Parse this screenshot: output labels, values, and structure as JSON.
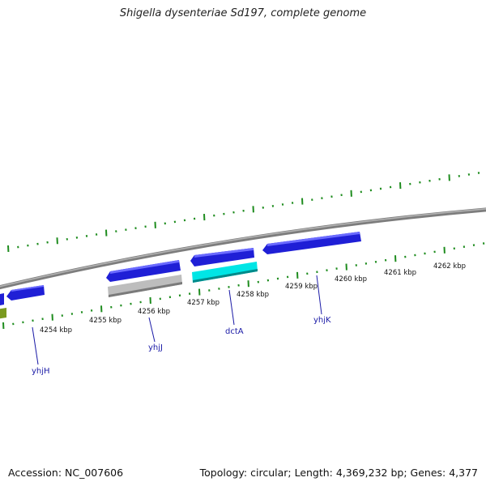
{
  "title": "Shigella dysenteriae Sd197, complete genome",
  "footer": {
    "accession": "Accession: NC_007606",
    "summary": "Topology: circular; Length: 4,369,232 bp; Genes: 4,377"
  },
  "colors": {
    "backbone": "#8a8a8a",
    "ticks": "#1e8c1e",
    "gene_forward": "#1f1fd6",
    "gene_highlight": "#00e5e5",
    "gene_pseudo": "#bdbdbd",
    "gene_partial": "#7a9a20",
    "label": "#1a1aa6"
  },
  "scale_labels": [
    "4254 kbp",
    "4255 kbp",
    "4256 kbp",
    "4257 kbp",
    "4258 kbp",
    "4259 kbp",
    "4260 kbp",
    "4261 kbp",
    "4262 kbp"
  ],
  "gene_labels": [
    "yhjH",
    "yhjJ",
    "dctA",
    "yhjK"
  ]
}
